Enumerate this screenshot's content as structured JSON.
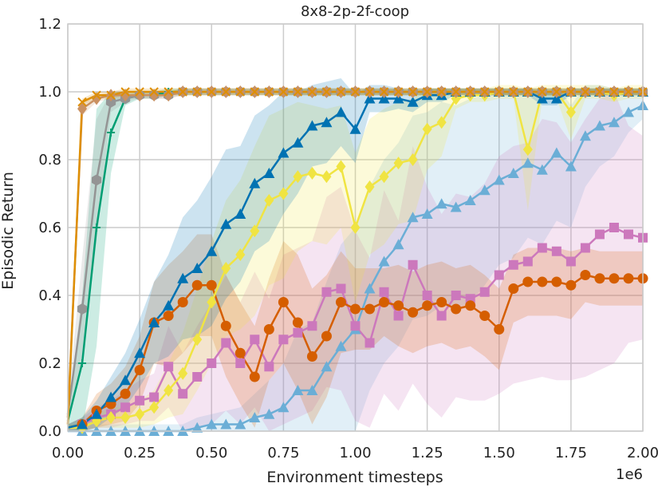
{
  "chart_data": {
    "type": "line",
    "title": "8x8-2p-2f-coop",
    "xlabel": "Environment timesteps",
    "ylabel": "Episodic Return",
    "x_multiplier_label": "1e6",
    "xlim": [
      0,
      2.0
    ],
    "ylim": [
      0,
      1.2
    ],
    "x_ticks": [
      "0.00",
      "0.25",
      "0.50",
      "0.75",
      "1.00",
      "1.25",
      "1.50",
      "1.75",
      "2.00"
    ],
    "x_tick_values": [
      0,
      0.25,
      0.5,
      0.75,
      1.0,
      1.25,
      1.5,
      1.75,
      2.0
    ],
    "y_ticks": [
      "0.0",
      "0.2",
      "0.4",
      "0.6",
      "0.8",
      "1.0",
      "1.2"
    ],
    "y_tick_values": [
      0,
      0.2,
      0.4,
      0.6,
      0.8,
      1.0,
      1.2
    ],
    "grid": true,
    "legend": "none",
    "series": [
      {
        "color": "#6baed6",
        "marker": "tri_up",
        "x": [
          0,
          0.05,
          0.1,
          0.15,
          0.2,
          0.25,
          0.3,
          0.35,
          0.4,
          0.45,
          0.5,
          0.55,
          0.6,
          0.65,
          0.7,
          0.75,
          0.8,
          0.85,
          0.9,
          0.95,
          1.0,
          1.05,
          1.1,
          1.15,
          1.2,
          1.25,
          1.3,
          1.35,
          1.4,
          1.45,
          1.5,
          1.55,
          1.6,
          1.65,
          1.7,
          1.75,
          1.8,
          1.85,
          1.9,
          1.95,
          2.0
        ],
        "y": [
          0.0,
          0.0,
          0.0,
          0.0,
          0.0,
          0.0,
          0.0,
          0.0,
          0.0,
          0.01,
          0.02,
          0.02,
          0.02,
          0.04,
          0.05,
          0.07,
          0.12,
          0.12,
          0.19,
          0.25,
          0.3,
          0.42,
          0.5,
          0.55,
          0.63,
          0.64,
          0.67,
          0.66,
          0.68,
          0.71,
          0.74,
          0.76,
          0.79,
          0.77,
          0.82,
          0.78,
          0.87,
          0.9,
          0.91,
          0.94,
          0.96
        ],
        "band_half": [
          0.02,
          0.02,
          0.02,
          0.02,
          0.02,
          0.02,
          0.02,
          0.02,
          0.02,
          0.03,
          0.03,
          0.04,
          0.05,
          0.07,
          0.1,
          0.13,
          0.18,
          0.2,
          0.25,
          0.3,
          0.3,
          0.3,
          0.3,
          0.3,
          0.3,
          0.3,
          0.3,
          0.3,
          0.3,
          0.28,
          0.25,
          0.25,
          0.22,
          0.22,
          0.2,
          0.18,
          0.15,
          0.12,
          0.1,
          0.06,
          0.04
        ]
      },
      {
        "color": "#cc78bc",
        "marker": "square",
        "x": [
          0,
          0.05,
          0.1,
          0.15,
          0.2,
          0.25,
          0.3,
          0.35,
          0.4,
          0.45,
          0.5,
          0.55,
          0.6,
          0.65,
          0.7,
          0.75,
          0.8,
          0.85,
          0.9,
          0.95,
          1.0,
          1.05,
          1.1,
          1.15,
          1.2,
          1.25,
          1.3,
          1.35,
          1.4,
          1.45,
          1.5,
          1.55,
          1.6,
          1.65,
          1.7,
          1.75,
          1.8,
          1.85,
          1.9,
          1.95,
          2.0
        ],
        "y": [
          0.01,
          0.02,
          0.04,
          0.05,
          0.07,
          0.09,
          0.1,
          0.19,
          0.11,
          0.16,
          0.2,
          0.26,
          0.2,
          0.27,
          0.19,
          0.27,
          0.29,
          0.31,
          0.41,
          0.42,
          0.31,
          0.26,
          0.41,
          0.34,
          0.49,
          0.4,
          0.34,
          0.4,
          0.39,
          0.41,
          0.46,
          0.49,
          0.5,
          0.54,
          0.53,
          0.5,
          0.54,
          0.58,
          0.6,
          0.58,
          0.57
        ],
        "band_half": [
          0.01,
          0.02,
          0.03,
          0.04,
          0.05,
          0.06,
          0.07,
          0.12,
          0.12,
          0.15,
          0.18,
          0.2,
          0.18,
          0.2,
          0.2,
          0.25,
          0.25,
          0.25,
          0.28,
          0.3,
          0.28,
          0.25,
          0.3,
          0.28,
          0.35,
          0.32,
          0.3,
          0.3,
          0.3,
          0.32,
          0.35,
          0.35,
          0.35,
          0.38,
          0.38,
          0.35,
          0.38,
          0.4,
          0.4,
          0.32,
          0.3
        ]
      },
      {
        "color": "#d55e00",
        "marker": "circle",
        "x": [
          0,
          0.05,
          0.1,
          0.15,
          0.2,
          0.25,
          0.3,
          0.35,
          0.4,
          0.45,
          0.5,
          0.55,
          0.6,
          0.65,
          0.7,
          0.75,
          0.8,
          0.85,
          0.9,
          0.95,
          1.0,
          1.05,
          1.1,
          1.15,
          1.2,
          1.25,
          1.3,
          1.35,
          1.4,
          1.45,
          1.5,
          1.55,
          1.6,
          1.65,
          1.7,
          1.75,
          1.8,
          1.85,
          1.9,
          1.95,
          2.0
        ],
        "y": [
          0.01,
          0.02,
          0.06,
          0.08,
          0.11,
          0.18,
          0.32,
          0.34,
          0.38,
          0.43,
          0.43,
          0.31,
          0.23,
          0.16,
          0.3,
          0.38,
          0.32,
          0.22,
          0.28,
          0.38,
          0.36,
          0.36,
          0.38,
          0.37,
          0.35,
          0.37,
          0.38,
          0.36,
          0.37,
          0.34,
          0.3,
          0.42,
          0.44,
          0.44,
          0.44,
          0.43,
          0.46,
          0.45,
          0.45,
          0.45,
          0.45
        ],
        "band_half": [
          0.01,
          0.02,
          0.05,
          0.06,
          0.08,
          0.1,
          0.12,
          0.15,
          0.15,
          0.15,
          0.15,
          0.15,
          0.15,
          0.15,
          0.15,
          0.18,
          0.2,
          0.2,
          0.18,
          0.15,
          0.12,
          0.12,
          0.1,
          0.12,
          0.12,
          0.12,
          0.12,
          0.12,
          0.12,
          0.12,
          0.12,
          0.1,
          0.1,
          0.1,
          0.1,
          0.1,
          0.08,
          0.08,
          0.08,
          0.08,
          0.08
        ]
      },
      {
        "color": "#f0e442",
        "marker": "diamond",
        "x": [
          0,
          0.05,
          0.1,
          0.15,
          0.2,
          0.25,
          0.3,
          0.35,
          0.4,
          0.45,
          0.5,
          0.55,
          0.6,
          0.65,
          0.7,
          0.75,
          0.8,
          0.85,
          0.9,
          0.95,
          1.0,
          1.05,
          1.1,
          1.15,
          1.2,
          1.25,
          1.3,
          1.35,
          1.4,
          1.45,
          1.5,
          1.55,
          1.6,
          1.65,
          1.7,
          1.75,
          1.8,
          1.85,
          1.9,
          1.95,
          2.0
        ],
        "y": [
          0.01,
          0.01,
          0.03,
          0.04,
          0.04,
          0.05,
          0.07,
          0.12,
          0.17,
          0.27,
          0.38,
          0.48,
          0.52,
          0.59,
          0.68,
          0.7,
          0.75,
          0.76,
          0.75,
          0.78,
          0.6,
          0.72,
          0.75,
          0.79,
          0.8,
          0.89,
          0.91,
          0.98,
          0.99,
          0.99,
          1.0,
          1.0,
          0.83,
          1.0,
          1.0,
          0.94,
          1.0,
          1.0,
          0.99,
          1.0,
          1.0
        ],
        "band_half": [
          0.01,
          0.01,
          0.02,
          0.03,
          0.03,
          0.04,
          0.05,
          0.08,
          0.12,
          0.15,
          0.18,
          0.2,
          0.22,
          0.25,
          0.25,
          0.25,
          0.22,
          0.2,
          0.2,
          0.18,
          0.22,
          0.2,
          0.2,
          0.18,
          0.18,
          0.12,
          0.1,
          0.03,
          0.02,
          0.02,
          0.02,
          0.02,
          0.18,
          0.02,
          0.02,
          0.08,
          0.02,
          0.02,
          0.02,
          0.02,
          0.02
        ]
      },
      {
        "color": "#0072b2",
        "marker": "tri_up",
        "x": [
          0,
          0.05,
          0.1,
          0.15,
          0.2,
          0.25,
          0.3,
          0.35,
          0.4,
          0.45,
          0.5,
          0.55,
          0.6,
          0.65,
          0.7,
          0.75,
          0.8,
          0.85,
          0.9,
          0.95,
          1.0,
          1.05,
          1.1,
          1.15,
          1.2,
          1.25,
          1.3,
          1.35,
          1.4,
          1.45,
          1.5,
          1.55,
          1.6,
          1.65,
          1.7,
          1.75,
          1.8,
          1.85,
          1.9,
          1.95,
          2.0
        ],
        "y": [
          0.01,
          0.02,
          0.05,
          0.1,
          0.15,
          0.23,
          0.32,
          0.37,
          0.45,
          0.48,
          0.53,
          0.61,
          0.64,
          0.73,
          0.76,
          0.82,
          0.85,
          0.9,
          0.91,
          0.94,
          0.89,
          0.98,
          0.98,
          0.98,
          0.97,
          0.99,
          0.99,
          1.0,
          1.0,
          1.0,
          1.0,
          1.0,
          1.0,
          0.98,
          0.98,
          1.0,
          1.0,
          1.0,
          1.0,
          1.0,
          1.0
        ],
        "band_half": [
          0.01,
          0.02,
          0.04,
          0.06,
          0.08,
          0.1,
          0.12,
          0.15,
          0.18,
          0.2,
          0.22,
          0.22,
          0.2,
          0.2,
          0.2,
          0.18,
          0.15,
          0.12,
          0.12,
          0.1,
          0.1,
          0.04,
          0.04,
          0.03,
          0.03,
          0.02,
          0.02,
          0.01,
          0.01,
          0.01,
          0.01,
          0.01,
          0.01,
          0.02,
          0.02,
          0.01,
          0.01,
          0.01,
          0.01,
          0.01,
          0.01
        ]
      },
      {
        "color": "#009e73",
        "marker": "plus",
        "x": [
          0,
          0.05,
          0.1,
          0.15,
          0.2,
          0.25,
          0.3,
          0.35,
          0.4,
          0.45,
          0.5,
          0.55,
          0.6,
          0.65,
          0.7,
          0.75,
          0.8,
          0.85,
          0.9,
          0.95,
          1.0,
          1.05,
          1.1,
          1.15,
          1.2,
          1.25,
          1.3,
          1.35,
          1.4,
          1.45,
          1.5,
          1.55,
          1.6,
          1.65,
          1.7,
          1.75,
          1.8,
          1.85,
          1.9,
          1.95,
          2.0
        ],
        "y": [
          0.03,
          0.2,
          0.6,
          0.88,
          0.98,
          0.99,
          0.99,
          1.0,
          1.0,
          1.0,
          1.0,
          1.0,
          1.0,
          1.0,
          1.0,
          1.0,
          1.0,
          1.0,
          1.0,
          1.0,
          1.0,
          1.0,
          1.0,
          1.0,
          1.0,
          1.0,
          1.0,
          1.0,
          1.0,
          1.0,
          1.0,
          1.0,
          1.0,
          1.0,
          1.0,
          1.0,
          1.0,
          1.0,
          1.0,
          1.0,
          1.0
        ],
        "band_half": [
          0.02,
          0.2,
          0.35,
          0.12,
          0.02,
          0.01,
          0.01,
          0.01,
          0.01,
          0.01,
          0.01,
          0.01,
          0.01,
          0.01,
          0.01,
          0.01,
          0.01,
          0.01,
          0.01,
          0.01,
          0.01,
          0.01,
          0.01,
          0.01,
          0.01,
          0.01,
          0.01,
          0.01,
          0.01,
          0.01,
          0.01,
          0.01,
          0.01,
          0.01,
          0.01,
          0.01,
          0.01,
          0.01,
          0.01,
          0.01,
          0.01
        ]
      },
      {
        "color": "#949494",
        "marker": "hexagon",
        "x": [
          0,
          0.05,
          0.1,
          0.15,
          0.2,
          0.25,
          0.3,
          0.35,
          0.4,
          0.45,
          0.5,
          0.55,
          0.6,
          0.65,
          0.7,
          0.75,
          0.8,
          0.85,
          0.9,
          0.95,
          1.0,
          1.05,
          1.1,
          1.15,
          1.2,
          1.25,
          1.3,
          1.35,
          1.4,
          1.45,
          1.5,
          1.55,
          1.6,
          1.65,
          1.7,
          1.75,
          1.8,
          1.85,
          1.9,
          1.95,
          2.0
        ],
        "y": [
          0.05,
          0.36,
          0.74,
          0.97,
          0.98,
          0.99,
          0.99,
          0.99,
          1.0,
          1.0,
          1.0,
          1.0,
          1.0,
          1.0,
          1.0,
          1.0,
          1.0,
          1.0,
          1.0,
          1.0,
          1.0,
          1.0,
          1.0,
          1.0,
          1.0,
          1.0,
          1.0,
          1.0,
          1.0,
          1.0,
          1.0,
          1.0,
          1.0,
          1.0,
          1.0,
          1.0,
          1.0,
          1.0,
          1.0,
          1.0,
          1.0
        ],
        "band_half": [
          0.03,
          0.15,
          0.18,
          0.03,
          0.01,
          0.01,
          0.01,
          0.01,
          0.01,
          0.01,
          0.01,
          0.01,
          0.01,
          0.01,
          0.01,
          0.01,
          0.01,
          0.01,
          0.01,
          0.01,
          0.01,
          0.01,
          0.01,
          0.01,
          0.01,
          0.01,
          0.01,
          0.01,
          0.01,
          0.01,
          0.01,
          0.01,
          0.01,
          0.01,
          0.01,
          0.01,
          0.01,
          0.01,
          0.01,
          0.01,
          0.01
        ]
      },
      {
        "color": "#ca9161",
        "marker": "diamond",
        "x": [
          0,
          0.05,
          0.1,
          0.15,
          0.2,
          0.25,
          0.3,
          0.35,
          0.4,
          0.45,
          0.5,
          0.55,
          0.6,
          0.65,
          0.7,
          0.75,
          0.8,
          0.85,
          0.9,
          0.95,
          1.0,
          1.05,
          1.1,
          1.15,
          1.2,
          1.25,
          1.3,
          1.35,
          1.4,
          1.45,
          1.5,
          1.55,
          1.6,
          1.65,
          1.7,
          1.75,
          1.8,
          1.85,
          1.9,
          1.95,
          2.0
        ],
        "y": [
          0.04,
          0.95,
          0.98,
          0.99,
          0.99,
          0.99,
          0.99,
          0.99,
          1.0,
          1.0,
          1.0,
          1.0,
          1.0,
          1.0,
          1.0,
          1.0,
          1.0,
          1.0,
          1.0,
          1.0,
          1.0,
          1.0,
          1.0,
          1.0,
          1.0,
          1.0,
          1.0,
          1.0,
          1.0,
          1.0,
          1.0,
          1.0,
          1.0,
          1.0,
          1.0,
          1.0,
          1.0,
          1.0,
          1.0,
          1.0,
          1.0
        ],
        "band_half": [
          0.02,
          0.02,
          0.01,
          0.01,
          0.01,
          0.01,
          0.01,
          0.01,
          0.01,
          0.01,
          0.01,
          0.01,
          0.01,
          0.01,
          0.01,
          0.01,
          0.01,
          0.01,
          0.01,
          0.01,
          0.01,
          0.01,
          0.01,
          0.01,
          0.01,
          0.01,
          0.01,
          0.01,
          0.01,
          0.01,
          0.01,
          0.01,
          0.01,
          0.01,
          0.01,
          0.01,
          0.01,
          0.01,
          0.01,
          0.01,
          0.01
        ]
      },
      {
        "color": "#de8f05",
        "marker": "x",
        "x": [
          0,
          0.05,
          0.1,
          0.15,
          0.2,
          0.25,
          0.3,
          0.35,
          0.4,
          0.45,
          0.5,
          0.55,
          0.6,
          0.65,
          0.7,
          0.75,
          0.8,
          0.85,
          0.9,
          0.95,
          1.0,
          1.05,
          1.1,
          1.15,
          1.2,
          1.25,
          1.3,
          1.35,
          1.4,
          1.45,
          1.5,
          1.55,
          1.6,
          1.65,
          1.7,
          1.75,
          1.8,
          1.85,
          1.9,
          1.95,
          2.0
        ],
        "y": [
          0.02,
          0.97,
          0.99,
          0.99,
          1.0,
          1.0,
          1.0,
          1.0,
          1.0,
          1.0,
          1.0,
          1.0,
          1.0,
          1.0,
          1.0,
          1.0,
          1.0,
          1.0,
          1.0,
          1.0,
          1.0,
          1.0,
          1.0,
          1.0,
          1.0,
          1.0,
          1.0,
          1.0,
          1.0,
          1.0,
          1.0,
          1.0,
          1.0,
          1.0,
          1.0,
          1.0,
          1.0,
          1.0,
          1.0,
          1.0,
          1.0
        ],
        "band_half": [
          0.01,
          0.01,
          0.01,
          0.01,
          0.01,
          0.01,
          0.01,
          0.01,
          0.01,
          0.01,
          0.01,
          0.01,
          0.01,
          0.01,
          0.01,
          0.01,
          0.01,
          0.01,
          0.01,
          0.01,
          0.01,
          0.01,
          0.01,
          0.01,
          0.01,
          0.01,
          0.01,
          0.01,
          0.01,
          0.01,
          0.01,
          0.01,
          0.01,
          0.01,
          0.01,
          0.01,
          0.01,
          0.01,
          0.01,
          0.01,
          0.01
        ]
      }
    ]
  }
}
